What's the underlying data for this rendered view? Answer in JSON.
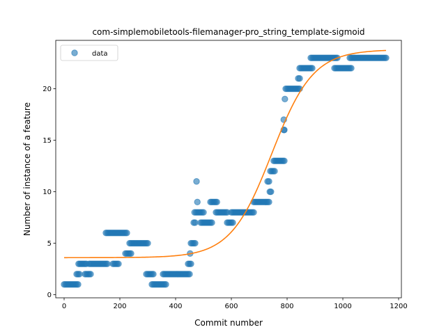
{
  "chart_data": {
    "type": "scatter",
    "title": "com-simplemobiletools-filemanager-pro_string_template-sigmoid",
    "xlabel": "Commit number",
    "ylabel": "Number of instance of a feature",
    "xlim": [
      -30,
      1210
    ],
    "ylim": [
      -0.3,
      24.7
    ],
    "xticks": [
      0,
      200,
      400,
      600,
      800,
      1000,
      1200
    ],
    "yticks": [
      0,
      5,
      10,
      15,
      20
    ],
    "legend": {
      "placement": "top-left",
      "entries": [
        "data"
      ]
    },
    "grid": false,
    "colors": {
      "data": "#1f77b4",
      "fit": "#ff7f0e"
    },
    "series": [
      {
        "name": "data",
        "kind": "points",
        "segments": [
          {
            "x_start": 0,
            "x_end": 50,
            "y": 1
          },
          {
            "x_start": 45,
            "x_end": 55,
            "y": 2
          },
          {
            "x_start": 52,
            "x_end": 80,
            "y": 3
          },
          {
            "x_start": 75,
            "x_end": 95,
            "y": 2
          },
          {
            "x_start": 90,
            "x_end": 155,
            "y": 3
          },
          {
            "x_start": 150,
            "x_end": 185,
            "y": 6
          },
          {
            "x_start": 175,
            "x_end": 195,
            "y": 3
          },
          {
            "x_start": 190,
            "x_end": 225,
            "y": 6
          },
          {
            "x_start": 220,
            "x_end": 240,
            "y": 4
          },
          {
            "x_start": 235,
            "x_end": 300,
            "y": 5
          },
          {
            "x_start": 295,
            "x_end": 320,
            "y": 2
          },
          {
            "x_start": 315,
            "x_end": 365,
            "y": 1
          },
          {
            "x_start": 355,
            "x_end": 450,
            "y": 2
          },
          {
            "x_start": 445,
            "x_end": 455,
            "y": 3
          },
          {
            "x_start": 452,
            "x_end": 452,
            "y": 4
          },
          {
            "x_start": 455,
            "x_end": 470,
            "y": 5
          },
          {
            "x_start": 465,
            "x_end": 470,
            "y": 7
          },
          {
            "x_start": 468,
            "x_end": 500,
            "y": 8
          },
          {
            "x_start": 475,
            "x_end": 475,
            "y": 11
          },
          {
            "x_start": 478,
            "x_end": 478,
            "y": 9
          },
          {
            "x_start": 490,
            "x_end": 530,
            "y": 7
          },
          {
            "x_start": 525,
            "x_end": 548,
            "y": 9
          },
          {
            "x_start": 545,
            "x_end": 585,
            "y": 8
          },
          {
            "x_start": 585,
            "x_end": 605,
            "y": 7
          },
          {
            "x_start": 600,
            "x_end": 680,
            "y": 8
          },
          {
            "x_start": 680,
            "x_end": 735,
            "y": 9
          },
          {
            "x_start": 730,
            "x_end": 735,
            "y": 11
          },
          {
            "x_start": 738,
            "x_end": 742,
            "y": 10
          },
          {
            "x_start": 740,
            "x_end": 755,
            "y": 12
          },
          {
            "x_start": 752,
            "x_end": 790,
            "y": 13
          },
          {
            "x_start": 788,
            "x_end": 790,
            "y": 16
          },
          {
            "x_start": 788,
            "x_end": 788,
            "y": 17
          },
          {
            "x_start": 792,
            "x_end": 792,
            "y": 19
          },
          {
            "x_start": 795,
            "x_end": 845,
            "y": 20
          },
          {
            "x_start": 840,
            "x_end": 845,
            "y": 21
          },
          {
            "x_start": 845,
            "x_end": 890,
            "y": 22
          },
          {
            "x_start": 885,
            "x_end": 980,
            "y": 23
          },
          {
            "x_start": 970,
            "x_end": 1030,
            "y": 22
          },
          {
            "x_start": 1025,
            "x_end": 1155,
            "y": 23
          }
        ]
      },
      {
        "name": "",
        "kind": "line",
        "model": "sigmoid",
        "params": {
          "lower": 3.6,
          "upper": 23.8,
          "midpoint": 745,
          "slope": 0.0135
        },
        "x_range": [
          0,
          1155
        ]
      }
    ]
  }
}
